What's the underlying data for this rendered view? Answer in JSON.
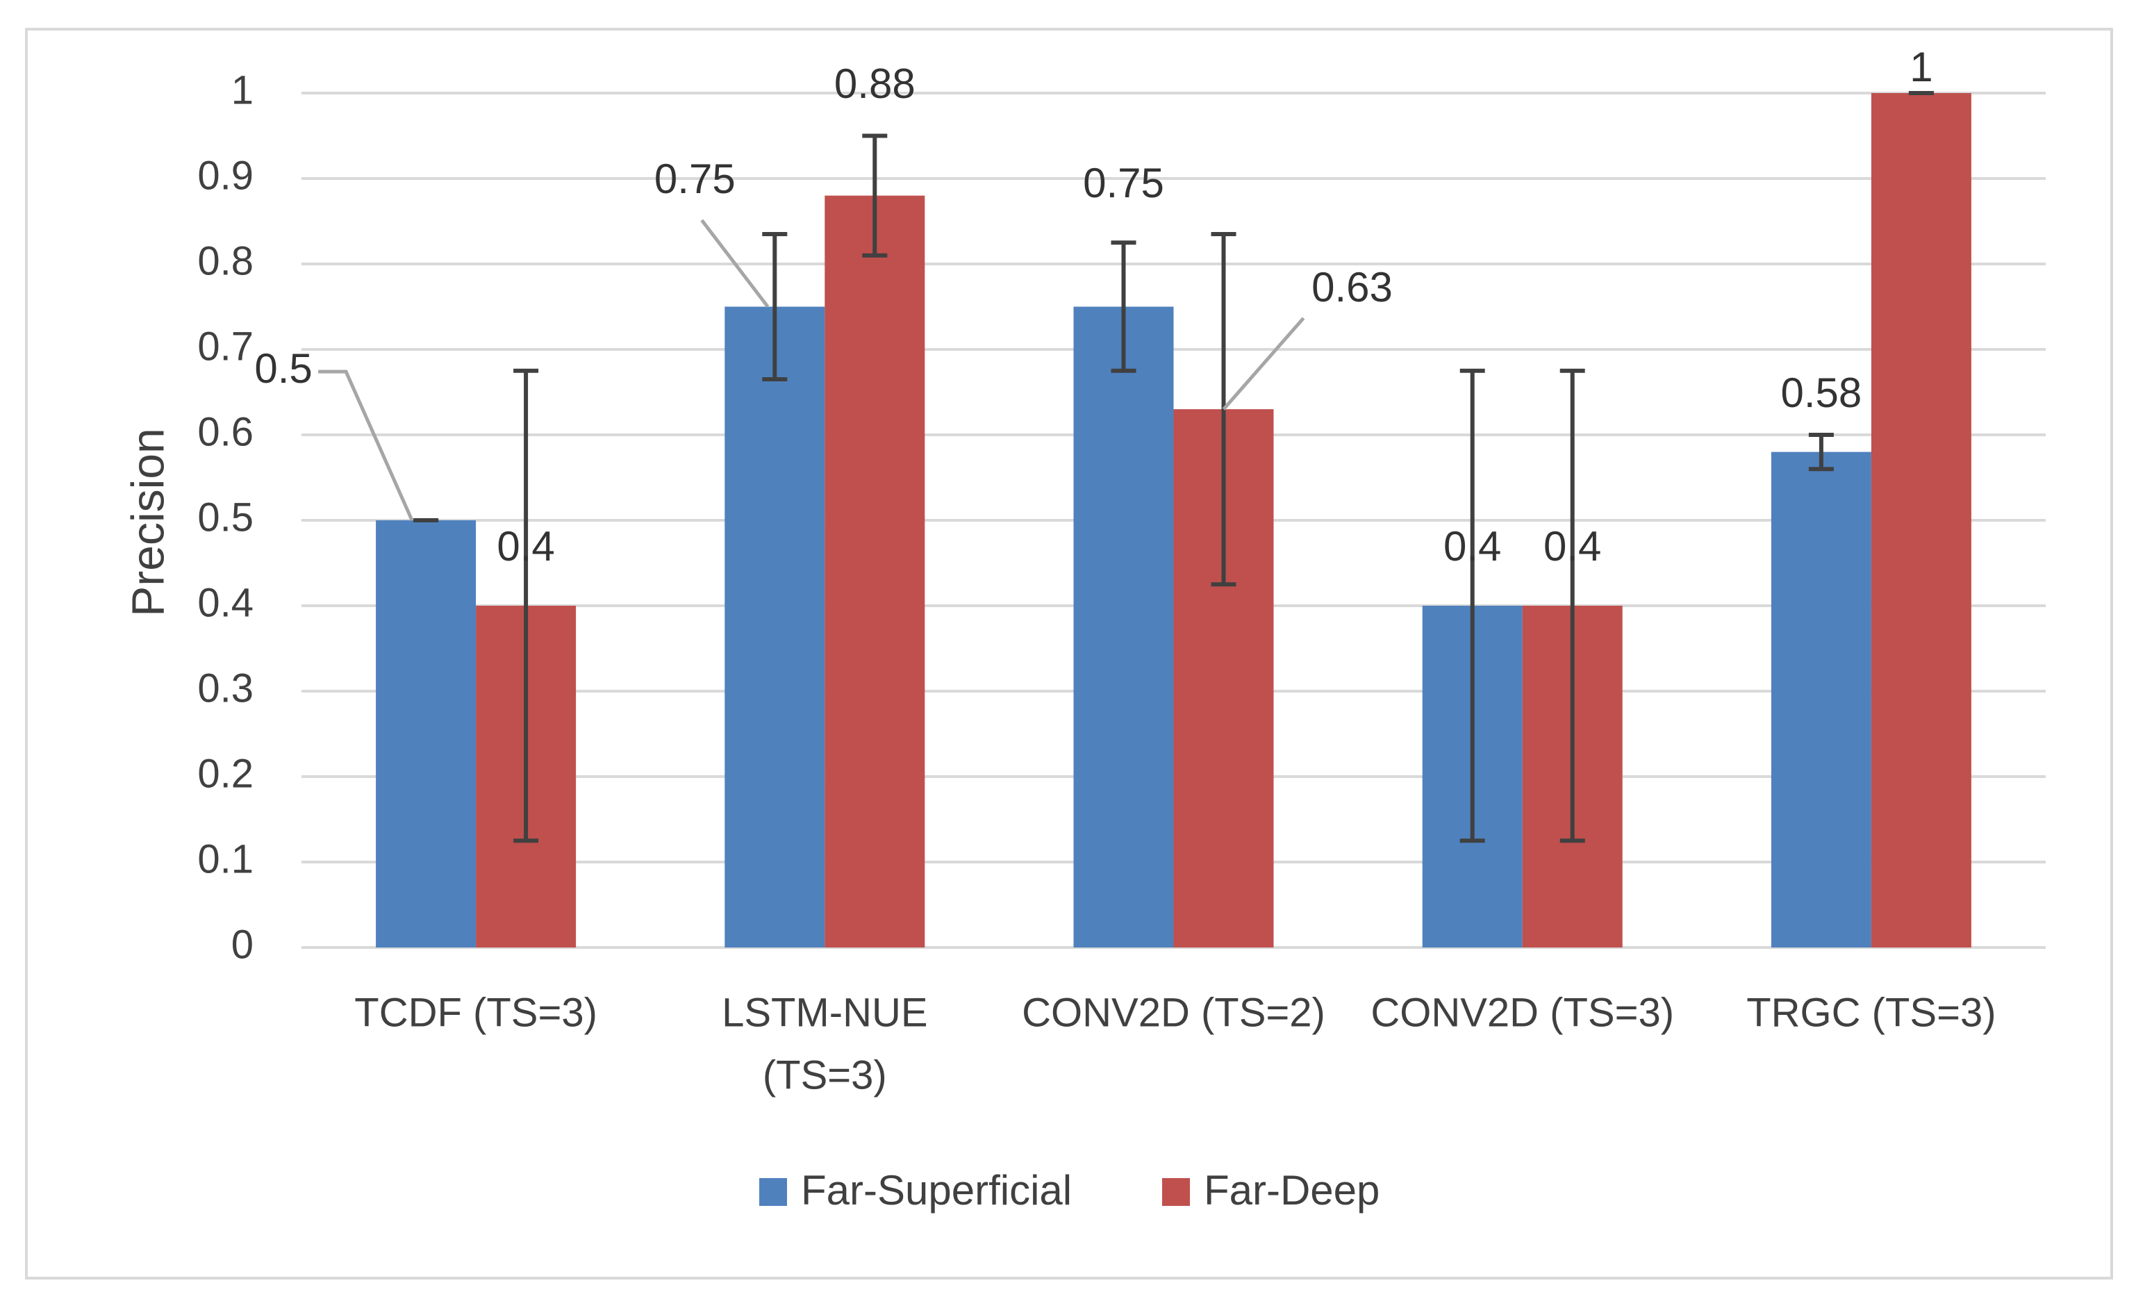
{
  "chart_data": {
    "type": "bar",
    "title": "",
    "xlabel": "",
    "ylabel": "Precision",
    "ylim": [
      0,
      1
    ],
    "yticks": [
      "0",
      "0.1",
      "0.2",
      "0.3",
      "0.4",
      "0.5",
      "0.6",
      "0.7",
      "0.8",
      "0.9",
      "1"
    ],
    "grid": true,
    "legend_position": "bottom",
    "categories": [
      [
        "TCDF (TS=3)"
      ],
      [
        "LSTM-NUE",
        "(TS=3)"
      ],
      [
        "CONV2D (TS=2)"
      ],
      [
        "CONV2D (TS=3)"
      ],
      [
        "TRGC (TS=3)"
      ]
    ],
    "series": [
      {
        "name": "Far-Superficial",
        "color": "#4f81bd",
        "values": [
          0.5,
          0.75,
          0.75,
          0.4,
          0.58
        ],
        "labels": [
          "0.5",
          "0.75",
          "0.75",
          "0.4",
          "0.58"
        ],
        "error_low": [
          0.5,
          0.665,
          0.675,
          0.125,
          0.56
        ],
        "error_high": [
          0.5,
          0.835,
          0.825,
          0.675,
          0.6
        ]
      },
      {
        "name": "Far-Deep",
        "color": "#c0504d",
        "values": [
          0.4,
          0.88,
          0.63,
          0.4,
          1
        ],
        "labels": [
          "0.4",
          "0.88",
          "0.63",
          "0.4",
          "1"
        ],
        "error_low": [
          0.125,
          0.81,
          0.425,
          0.125,
          1
        ],
        "error_high": [
          0.675,
          0.95,
          0.835,
          0.675,
          1
        ]
      }
    ]
  }
}
